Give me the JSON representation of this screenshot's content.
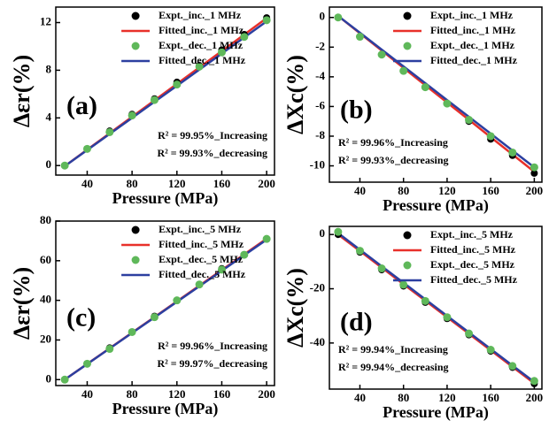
{
  "chart_data": [
    {
      "type": "line",
      "panel_label": "(a)",
      "xlabel": "Pressure (MPa)",
      "ylabel": "Δεr(%)",
      "x": [
        20,
        40,
        60,
        80,
        100,
        120,
        140,
        160,
        180,
        200
      ],
      "xlim": [
        12,
        207
      ],
      "xticks": [
        40,
        80,
        120,
        160,
        200
      ],
      "ylim": [
        -0.8,
        13.3
      ],
      "yticks": [
        0,
        4,
        8,
        12
      ],
      "legend": "upper right",
      "annotation_loc": "lower right",
      "annotations": [
        "R² = 99.95%_Increasing",
        "R² = 99.93%_decreasing"
      ],
      "series": [
        {
          "name": "Expt._inc._1 MHz",
          "color": "#000000",
          "style": "marker",
          "values": [
            0,
            1.4,
            2.9,
            4.3,
            5.6,
            7.0,
            8.4,
            9.7,
            11.0,
            12.4
          ]
        },
        {
          "name": "Fitted_inc._1 MHz",
          "color": "#e8302a",
          "style": "line",
          "values": [
            -0.05,
            1.33,
            2.71,
            4.09,
            5.47,
            6.85,
            8.23,
            9.61,
            10.99,
            12.37
          ]
        },
        {
          "name": "Expt._dec._1 MHz",
          "color": "#5fb85a",
          "style": "marker",
          "values": [
            0,
            1.4,
            2.8,
            4.2,
            5.5,
            6.8,
            8.3,
            9.5,
            10.8,
            12.2
          ]
        },
        {
          "name": "Fitted_dec._1 MHz",
          "color": "#2c3fa0",
          "style": "line",
          "values": [
            -0.05,
            1.3,
            2.65,
            4.0,
            5.35,
            6.7,
            8.05,
            9.4,
            10.75,
            12.1
          ]
        }
      ]
    },
    {
      "type": "line",
      "panel_label": "(b)",
      "xlabel": "Pressure (MPa)",
      "ylabel": "ΔXc(%)",
      "x": [
        20,
        40,
        60,
        80,
        100,
        120,
        140,
        160,
        180,
        200
      ],
      "xlim": [
        12,
        207
      ],
      "xticks": [
        40,
        80,
        120,
        160,
        200
      ],
      "ylim": [
        -11.1,
        0.7
      ],
      "yticks": [
        0,
        -2,
        -4,
        -6,
        -8,
        -10
      ],
      "legend": "upper right",
      "annotation_loc": "lower left",
      "annotations": [
        "R² = 99.96%_Increasing",
        "R² = 99.93%_decreasing"
      ],
      "series": [
        {
          "name": "Expt._inc._1 MHz",
          "color": "#000000",
          "style": "marker",
          "values": [
            0,
            -1.3,
            -2.5,
            -3.6,
            -4.7,
            -5.8,
            -7.0,
            -8.2,
            -9.3,
            -10.5
          ]
        },
        {
          "name": "Fitted_inc._1 MHz",
          "color": "#e8302a",
          "style": "line",
          "values": [
            0.1,
            -1.07,
            -2.23,
            -3.4,
            -4.57,
            -5.73,
            -6.9,
            -8.07,
            -9.23,
            -10.4
          ]
        },
        {
          "name": "Expt._dec._1 MHz",
          "color": "#5fb85a",
          "style": "marker",
          "values": [
            0,
            -1.3,
            -2.5,
            -3.6,
            -4.7,
            -5.8,
            -6.9,
            -8.0,
            -9.1,
            -10.1
          ]
        },
        {
          "name": "Fitted_dec._1 MHz",
          "color": "#2c3fa0",
          "style": "line",
          "values": [
            0.1,
            -1.03,
            -2.17,
            -3.3,
            -4.43,
            -5.57,
            -6.7,
            -7.83,
            -8.97,
            -10.1
          ]
        }
      ]
    },
    {
      "type": "line",
      "panel_label": "(c)",
      "xlabel": "Pressure (MPa)",
      "ylabel": "Δεr(%)",
      "x": [
        20,
        40,
        60,
        80,
        100,
        120,
        140,
        160,
        180,
        200
      ],
      "xlim": [
        12,
        207
      ],
      "xticks": [
        40,
        80,
        120,
        160,
        200
      ],
      "ylim": [
        -3,
        80
      ],
      "yticks": [
        0,
        20,
        40,
        60,
        80
      ],
      "legend": "upper right",
      "annotation_loc": "lower right",
      "annotations": [
        "R² = 99.96%_Increasing",
        "R² = 99.97%_decreasing"
      ],
      "series": [
        {
          "name": "Expt._inc._5 MHz",
          "color": "#000000",
          "style": "marker",
          "values": [
            0,
            8,
            16,
            24,
            32,
            40,
            48,
            56,
            63,
            71
          ]
        },
        {
          "name": "Fitted_inc._5 MHz",
          "color": "#e8302a",
          "style": "line",
          "values": [
            0,
            7.9,
            15.8,
            23.7,
            31.6,
            39.5,
            47.4,
            55.3,
            63.2,
            71.1
          ]
        },
        {
          "name": "Expt._dec._5 MHz",
          "color": "#5fb85a",
          "style": "marker",
          "values": [
            0,
            8,
            15.5,
            24,
            31.5,
            40,
            48,
            55.5,
            63,
            71
          ]
        },
        {
          "name": "Fitted_dec._5 MHz",
          "color": "#2c3fa0",
          "style": "line",
          "values": [
            0,
            7.85,
            15.7,
            23.55,
            31.4,
            39.25,
            47.1,
            54.95,
            62.8,
            70.65
          ]
        }
      ]
    },
    {
      "type": "line",
      "panel_label": "(d)",
      "xlabel": "Pressure (MPa)",
      "ylabel": "ΔXc(%)",
      "x": [
        20,
        40,
        60,
        80,
        100,
        120,
        140,
        160,
        180,
        200
      ],
      "xlim": [
        12,
        207
      ],
      "xticks": [
        40,
        80,
        120,
        160,
        200
      ],
      "ylim": [
        -57,
        3
      ],
      "yticks": [
        0,
        -20,
        -40
      ],
      "legend": "upper right",
      "annotation_loc": "lower left",
      "annotations": [
        "R² = 99.94%_Increasing",
        "R² = 99.94%_decreasing"
      ],
      "series": [
        {
          "name": "Expt._inc._5 MHz",
          "color": "#000000",
          "style": "marker",
          "values": [
            0,
            -6.5,
            -13,
            -19,
            -25,
            -31,
            -37,
            -43,
            -49,
            -55
          ]
        },
        {
          "name": "Fitted_inc._5 MHz",
          "color": "#e8302a",
          "style": "line",
          "values": [
            0,
            -6.1,
            -12.2,
            -18.3,
            -24.4,
            -30.5,
            -36.6,
            -42.7,
            -48.8,
            -54.9
          ]
        },
        {
          "name": "Expt._dec._5 MHz",
          "color": "#5fb85a",
          "style": "marker",
          "values": [
            1,
            -6,
            -12.5,
            -18.5,
            -24.5,
            -30.5,
            -36.5,
            -42.5,
            -48.5,
            -54
          ]
        },
        {
          "name": "Fitted_dec._5 MHz",
          "color": "#2c3fa0",
          "style": "line",
          "values": [
            0.5,
            -5.6,
            -11.7,
            -17.8,
            -23.9,
            -30,
            -36.1,
            -42.2,
            -48.3,
            -54.4
          ]
        }
      ]
    }
  ]
}
